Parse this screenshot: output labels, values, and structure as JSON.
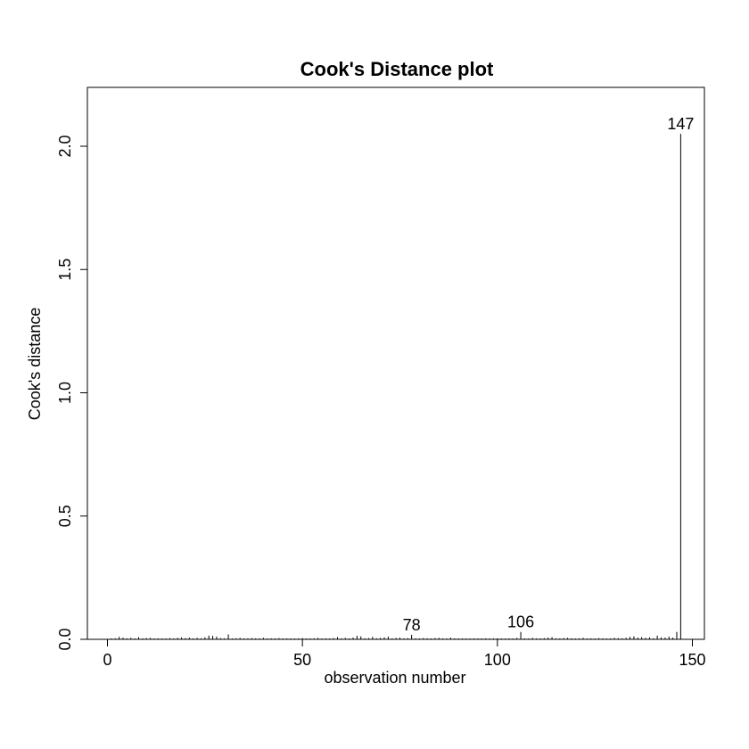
{
  "chart_data": {
    "type": "bar",
    "style": "histogram-like vertical spikes",
    "title": "Cook's Distance plot",
    "xlabel": "observation number",
    "ylabel": "Cook's distance",
    "xlim": [
      -3,
      153
    ],
    "ylim": [
      0,
      2.2
    ],
    "x_ticks": [
      0,
      50,
      100,
      150
    ],
    "y_ticks": [
      0.0,
      0.5,
      1.0,
      1.5,
      2.0
    ],
    "x_tick_labels": [
      "0",
      "50",
      "100",
      "150"
    ],
    "y_tick_labels": [
      "0.0",
      "0.5",
      "1.0",
      "1.5",
      "2.0"
    ],
    "grid": false,
    "legend": "none",
    "x": [
      1,
      2,
      3,
      4,
      5,
      6,
      7,
      8,
      9,
      10,
      11,
      12,
      13,
      14,
      15,
      16,
      17,
      18,
      19,
      20,
      21,
      22,
      23,
      24,
      25,
      26,
      27,
      28,
      29,
      30,
      31,
      32,
      33,
      34,
      35,
      36,
      37,
      38,
      39,
      40,
      41,
      42,
      43,
      44,
      45,
      46,
      47,
      48,
      49,
      50,
      51,
      52,
      53,
      54,
      55,
      56,
      57,
      58,
      59,
      60,
      61,
      62,
      63,
      64,
      65,
      66,
      67,
      68,
      69,
      70,
      71,
      72,
      73,
      74,
      75,
      76,
      77,
      78,
      79,
      80,
      81,
      82,
      83,
      84,
      85,
      86,
      87,
      88,
      89,
      90,
      91,
      92,
      93,
      94,
      95,
      96,
      97,
      98,
      99,
      100,
      101,
      102,
      103,
      104,
      105,
      106,
      107,
      108,
      109,
      110,
      111,
      112,
      113,
      114,
      115,
      116,
      117,
      118,
      119,
      120,
      121,
      122,
      123,
      124,
      125,
      126,
      127,
      128,
      129,
      130,
      131,
      132,
      133,
      134,
      135,
      136,
      137,
      138,
      139,
      140,
      141,
      142,
      143,
      144,
      145,
      146,
      147,
      148,
      149,
      150
    ],
    "values": [
      0.003,
      0.004,
      0.01,
      0.007,
      0.004,
      0.006,
      0.003,
      0.009,
      0.004,
      0.005,
      0.006,
      0.002,
      0.004,
      0.003,
      0.003,
      0.005,
      0.003,
      0.006,
      0.008,
      0.005,
      0.007,
      0.004,
      0.006,
      0.004,
      0.008,
      0.015,
      0.014,
      0.011,
      0.005,
      0.004,
      0.02,
      0.003,
      0.004,
      0.006,
      0.002,
      0.003,
      0.005,
      0.004,
      0.003,
      0.006,
      0.002,
      0.004,
      0.003,
      0.005,
      0.002,
      0.004,
      0.003,
      0.002,
      0.004,
      0.005,
      0.003,
      0.002,
      0.004,
      0.006,
      0.002,
      0.004,
      0.003,
      0.005,
      0.009,
      0.004,
      0.006,
      0.004,
      0.007,
      0.014,
      0.012,
      0.004,
      0.005,
      0.01,
      0.004,
      0.006,
      0.008,
      0.011,
      0.004,
      0.006,
      0.007,
      0.003,
      0.005,
      0.018,
      0.004,
      0.003,
      0.005,
      0.004,
      0.003,
      0.005,
      0.006,
      0.004,
      0.003,
      0.007,
      0.004,
      0.003,
      0.004,
      0.003,
      0.002,
      0.004,
      0.003,
      0.002,
      0.004,
      0.003,
      0.002,
      0.004,
      0.003,
      0.002,
      0.004,
      0.003,
      0.006,
      0.03,
      0.004,
      0.003,
      0.006,
      0.004,
      0.003,
      0.005,
      0.007,
      0.009,
      0.004,
      0.003,
      0.005,
      0.006,
      0.004,
      0.003,
      0.004,
      0.006,
      0.003,
      0.004,
      0.003,
      0.005,
      0.004,
      0.003,
      0.004,
      0.006,
      0.005,
      0.004,
      0.006,
      0.01,
      0.012,
      0.007,
      0.009,
      0.006,
      0.008,
      0.004,
      0.015,
      0.008,
      0.007,
      0.011,
      0.007,
      0.03,
      2.05,
      0.0,
      0.0,
      0.0
    ],
    "annotations": [
      {
        "label": "78",
        "x": 78
      },
      {
        "label": "106",
        "x": 106
      },
      {
        "label": "147",
        "x": 147
      }
    ]
  }
}
